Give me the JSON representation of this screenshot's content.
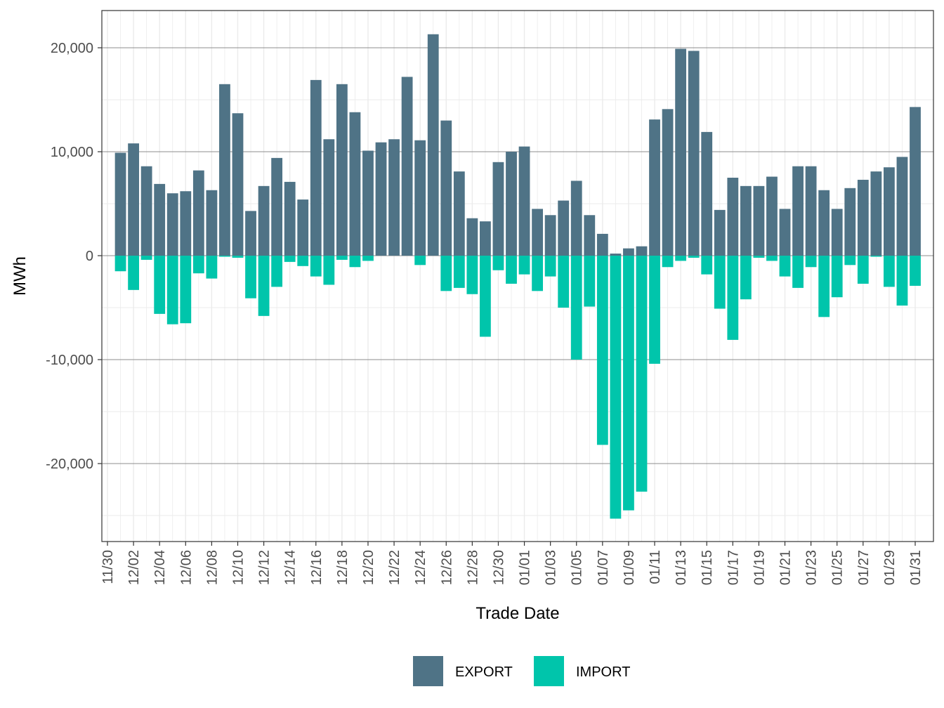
{
  "colors": {
    "export": "#4f7386",
    "import": "#00c5ab",
    "grid_major": "#8c8c8c",
    "grid_minor": "#ebebeb",
    "panel_border": "#333333"
  },
  "chart_data": {
    "type": "bar",
    "stacked": true,
    "xlabel": "Trade Date",
    "ylabel": "MWh",
    "ylim": [
      -26000,
      23600
    ],
    "y_ticks": [
      -20000,
      -10000,
      0,
      10000,
      20000
    ],
    "y_tick_labels": [
      "-20,000",
      "-10,000",
      "0",
      "10,000",
      "20,000"
    ],
    "x_tick_labels": [
      "11/30",
      "12/02",
      "12/04",
      "12/06",
      "12/08",
      "12/10",
      "12/12",
      "12/14",
      "12/16",
      "12/18",
      "12/20",
      "12/22",
      "12/24",
      "12/26",
      "12/28",
      "12/30",
      "01/01",
      "01/03",
      "01/05",
      "01/07",
      "01/09",
      "01/11",
      "01/13",
      "01/15",
      "01/17",
      "01/19",
      "01/21",
      "01/23",
      "01/25",
      "01/27",
      "01/29",
      "01/31"
    ],
    "grid": true,
    "legend_position": "bottom",
    "categories": [
      "12/01",
      "12/02",
      "12/03",
      "12/04",
      "12/05",
      "12/06",
      "12/07",
      "12/08",
      "12/09",
      "12/10",
      "12/11",
      "12/12",
      "12/13",
      "12/14",
      "12/15",
      "12/16",
      "12/17",
      "12/18",
      "12/19",
      "12/20",
      "12/21",
      "12/22",
      "12/23",
      "12/24",
      "12/25",
      "12/26",
      "12/27",
      "12/28",
      "12/29",
      "12/30",
      "12/31",
      "01/01",
      "01/02",
      "01/03",
      "01/04",
      "01/05",
      "01/06",
      "01/07",
      "01/08",
      "01/09",
      "01/10",
      "01/11",
      "01/12",
      "01/13",
      "01/14",
      "01/15",
      "01/16",
      "01/17",
      "01/18",
      "01/19",
      "01/20",
      "01/21",
      "01/22",
      "01/23",
      "01/24",
      "01/25",
      "01/26",
      "01/27",
      "01/28",
      "01/29",
      "01/30",
      "01/31"
    ],
    "series": [
      {
        "name": "EXPORT",
        "values": [
          9900,
          10800,
          8600,
          6900,
          6000,
          6200,
          8200,
          6300,
          16500,
          13700,
          4300,
          6700,
          9400,
          7100,
          5400,
          16900,
          11200,
          16500,
          13800,
          10100,
          10900,
          11200,
          17200,
          11100,
          21300,
          13000,
          8100,
          3600,
          3300,
          9000,
          10000,
          10500,
          4500,
          3900,
          5300,
          7200,
          3900,
          2100,
          200,
          700,
          900,
          13100,
          14100,
          19900,
          19700,
          11900,
          4400,
          7500,
          6700,
          6700,
          7600,
          4500,
          8600,
          8600,
          6300,
          4500,
          6500,
          7300,
          8100,
          8500,
          9500,
          14300
        ]
      },
      {
        "name": "IMPORT",
        "values": [
          -1500,
          -3300,
          -400,
          -5600,
          -6600,
          -6500,
          -1700,
          -2200,
          -100,
          -200,
          -4100,
          -5800,
          -3000,
          -600,
          -1000,
          -2000,
          -2800,
          -400,
          -1100,
          -500,
          0,
          0,
          0,
          -900,
          0,
          -3400,
          -3100,
          -3700,
          -7800,
          -1400,
          -2700,
          -1800,
          -3400,
          -2000,
          -5000,
          -10000,
          -4900,
          -18200,
          -25300,
          -24500,
          -22700,
          -10400,
          -1100,
          -500,
          -200,
          -1800,
          -5100,
          -8100,
          -4200,
          -200,
          -500,
          -2000,
          -3100,
          -1100,
          -5900,
          -4000,
          -900,
          -2700,
          -100,
          -3000,
          -4800,
          -2900
        ]
      }
    ]
  }
}
